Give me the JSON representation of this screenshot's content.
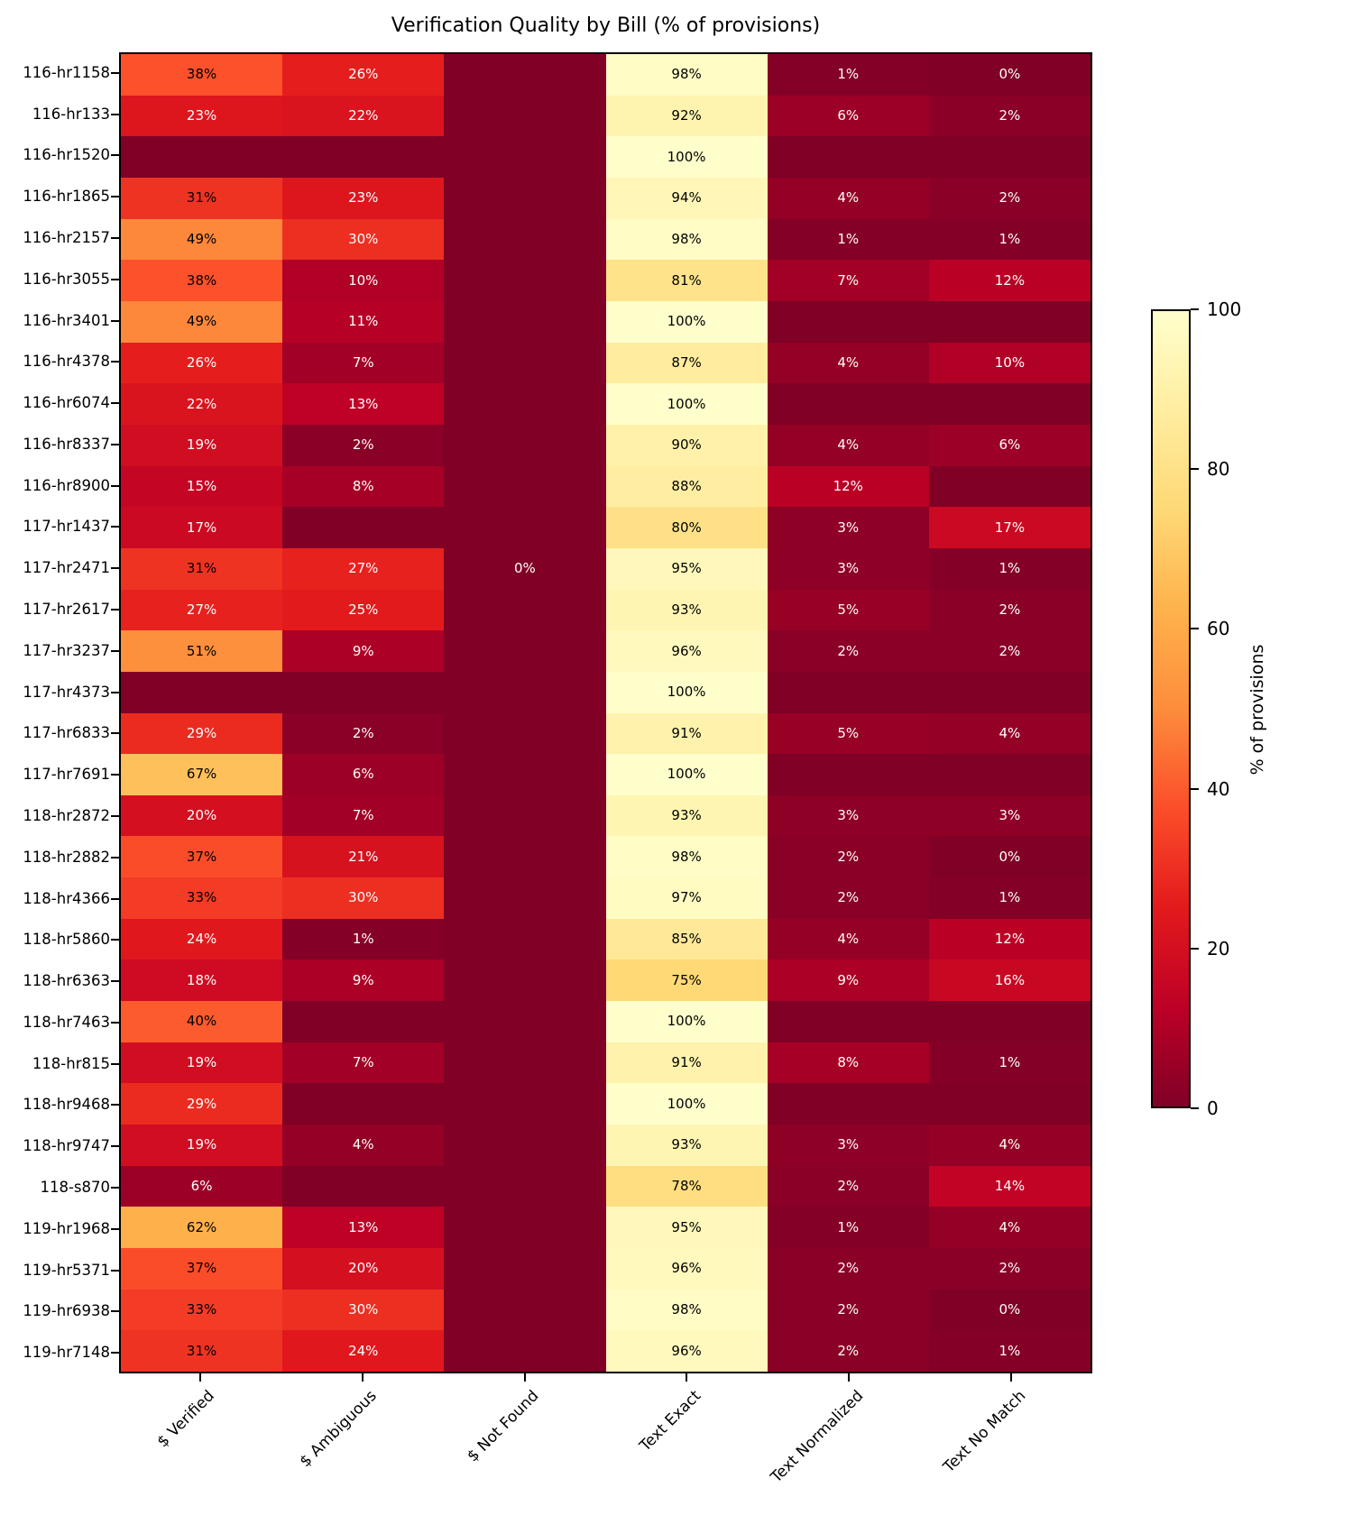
{
  "chart_data": {
    "type": "heatmap",
    "title": "Verification Quality by Bill (% of provisions)",
    "columns": [
      "$ Verified",
      "$ Ambiguous",
      "$ Not Found",
      "Text Exact",
      "Text Normalized",
      "Text No Match"
    ],
    "rows": [
      "116-hr1158",
      "116-hr133",
      "116-hr1520",
      "116-hr1865",
      "116-hr2157",
      "116-hr3055",
      "116-hr3401",
      "116-hr4378",
      "116-hr6074",
      "116-hr8337",
      "116-hr8900",
      "117-hr1437",
      "117-hr2471",
      "117-hr2617",
      "117-hr3237",
      "117-hr4373",
      "117-hr6833",
      "117-hr7691",
      "118-hr2872",
      "118-hr2882",
      "118-hr4366",
      "118-hr5860",
      "118-hr6363",
      "118-hr7463",
      "118-hr815",
      "118-hr9468",
      "118-hr9747",
      "118-s870",
      "119-hr1968",
      "119-hr5371",
      "119-hr6938",
      "119-hr7148"
    ],
    "values": [
      [
        38,
        26,
        null,
        98,
        1,
        0
      ],
      [
        23,
        22,
        null,
        92,
        6,
        2
      ],
      [
        null,
        null,
        null,
        100,
        null,
        null
      ],
      [
        31,
        23,
        null,
        94,
        4,
        2
      ],
      [
        49,
        30,
        null,
        98,
        1,
        1
      ],
      [
        38,
        10,
        null,
        81,
        7,
        12
      ],
      [
        49,
        11,
        null,
        100,
        null,
        null
      ],
      [
        26,
        7,
        null,
        87,
        4,
        10
      ],
      [
        22,
        13,
        null,
        100,
        null,
        null
      ],
      [
        19,
        2,
        null,
        90,
        4,
        6
      ],
      [
        15,
        8,
        null,
        88,
        12,
        null
      ],
      [
        17,
        null,
        null,
        80,
        3,
        17
      ],
      [
        31,
        27,
        0,
        95,
        3,
        1
      ],
      [
        27,
        25,
        null,
        93,
        5,
        2
      ],
      [
        51,
        9,
        null,
        96,
        2,
        2
      ],
      [
        null,
        null,
        null,
        100,
        null,
        null
      ],
      [
        29,
        2,
        null,
        91,
        5,
        4
      ],
      [
        67,
        6,
        null,
        100,
        null,
        null
      ],
      [
        20,
        7,
        null,
        93,
        3,
        3
      ],
      [
        37,
        21,
        null,
        98,
        2,
        0
      ],
      [
        33,
        30,
        null,
        97,
        2,
        1
      ],
      [
        24,
        1,
        null,
        85,
        4,
        12
      ],
      [
        18,
        9,
        null,
        75,
        9,
        16
      ],
      [
        40,
        null,
        null,
        100,
        null,
        null
      ],
      [
        19,
        7,
        null,
        91,
        8,
        1
      ],
      [
        29,
        null,
        null,
        100,
        null,
        null
      ],
      [
        19,
        4,
        null,
        93,
        3,
        4
      ],
      [
        6,
        null,
        null,
        78,
        2,
        14
      ],
      [
        62,
        13,
        null,
        95,
        1,
        4
      ],
      [
        37,
        20,
        null,
        96,
        2,
        2
      ],
      [
        33,
        30,
        null,
        98,
        2,
        0
      ],
      [
        31,
        24,
        null,
        96,
        2,
        1
      ]
    ],
    "value_suffix": "%",
    "colorbar": {
      "label": "% of provisions",
      "ticks": [
        100,
        80,
        60,
        40,
        20,
        0
      ],
      "min": 0,
      "max": 100
    },
    "colormap": {
      "name": "YlOrRd_r",
      "anchors_high_to_low": [
        "#ffffcc",
        "#ffeda0",
        "#fed976",
        "#feb24c",
        "#fd8d3c",
        "#fc4e2a",
        "#e31a1c",
        "#bd0026",
        "#800026"
      ]
    },
    "annotation_text_colors": {
      "light_cells": "#000000",
      "dark_cells": "#ffffff"
    }
  }
}
